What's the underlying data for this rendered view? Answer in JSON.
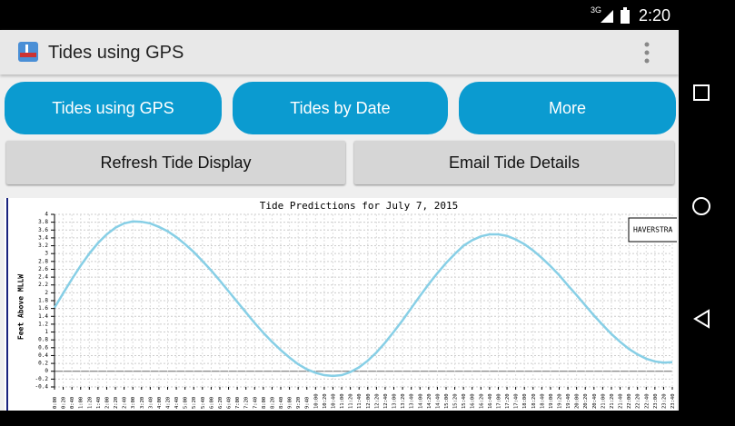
{
  "status_bar": {
    "network": "3G",
    "time": "2:20"
  },
  "app_bar": {
    "title": "Tides using GPS"
  },
  "nav_buttons": [
    {
      "label": "Tides using GPS"
    },
    {
      "label": "Tides by Date"
    },
    {
      "label": "More"
    }
  ],
  "action_buttons": [
    {
      "label": "Refresh Tide Display"
    },
    {
      "label": "Email Tide Details"
    }
  ],
  "chart_data": {
    "type": "line",
    "title": "Tide Predictions for July  7, 2015",
    "y_label": "Feet Above MLLW",
    "categories": [
      "0:00",
      "0:20",
      "0:40",
      "1:00",
      "1:20",
      "1:40",
      "2:00",
      "2:20",
      "2:40",
      "3:00",
      "3:20",
      "3:40",
      "4:00",
      "4:20",
      "4:40",
      "5:00",
      "5:20",
      "5:40",
      "6:00",
      "6:20",
      "6:40",
      "7:00",
      "7:20",
      "7:40",
      "8:00",
      "8:20",
      "8:40",
      "9:00",
      "9:20",
      "9:40",
      "10:00",
      "10:20",
      "10:40",
      "11:00",
      "11:20",
      "11:40",
      "12:00",
      "12:20",
      "12:40",
      "13:00",
      "13:20",
      "13:40",
      "14:00",
      "14:20",
      "14:40",
      "15:00",
      "15:20",
      "15:40",
      "16:00",
      "16:20",
      "16:40",
      "17:00",
      "17:20",
      "17:40",
      "18:00",
      "18:20",
      "18:40",
      "19:00",
      "19:20",
      "19:40",
      "20:00",
      "20:20",
      "20:40",
      "21:00",
      "21:20",
      "21:40",
      "22:00",
      "22:20",
      "22:40",
      "23:00",
      "23:20",
      "23:40"
    ],
    "series": [
      {
        "name": "HAVERSTRA",
        "color": "#87cfe6",
        "values": [
          1.62,
          1.99,
          2.35,
          2.69,
          3.0,
          3.27,
          3.49,
          3.66,
          3.77,
          3.82,
          3.81,
          3.77,
          3.68,
          3.57,
          3.42,
          3.24,
          3.04,
          2.81,
          2.57,
          2.31,
          2.04,
          1.77,
          1.5,
          1.23,
          0.98,
          0.75,
          0.54,
          0.35,
          0.18,
          0.05,
          -0.04,
          -0.1,
          -0.12,
          -0.1,
          -0.02,
          0.1,
          0.27,
          0.48,
          0.73,
          1.01,
          1.3,
          1.61,
          1.92,
          2.22,
          2.5,
          2.76,
          2.99,
          3.2,
          3.34,
          3.44,
          3.49,
          3.49,
          3.45,
          3.36,
          3.24,
          3.08,
          2.89,
          2.68,
          2.45,
          2.19,
          1.94,
          1.68,
          1.42,
          1.18,
          0.95,
          0.75,
          0.57,
          0.43,
          0.32,
          0.25,
          0.22,
          0.23
        ]
      }
    ],
    "ylim": [
      -0.4,
      4
    ],
    "yticks": [
      -0.4,
      -0.2,
      0,
      0.2,
      0.4,
      0.6,
      0.8,
      1,
      1.2,
      1.4,
      1.6,
      1.8,
      2,
      2.2,
      2.4,
      2.6,
      2.8,
      3,
      3.2,
      3.4,
      3.6,
      3.8,
      4
    ],
    "grid": true,
    "legend": "upper right"
  }
}
